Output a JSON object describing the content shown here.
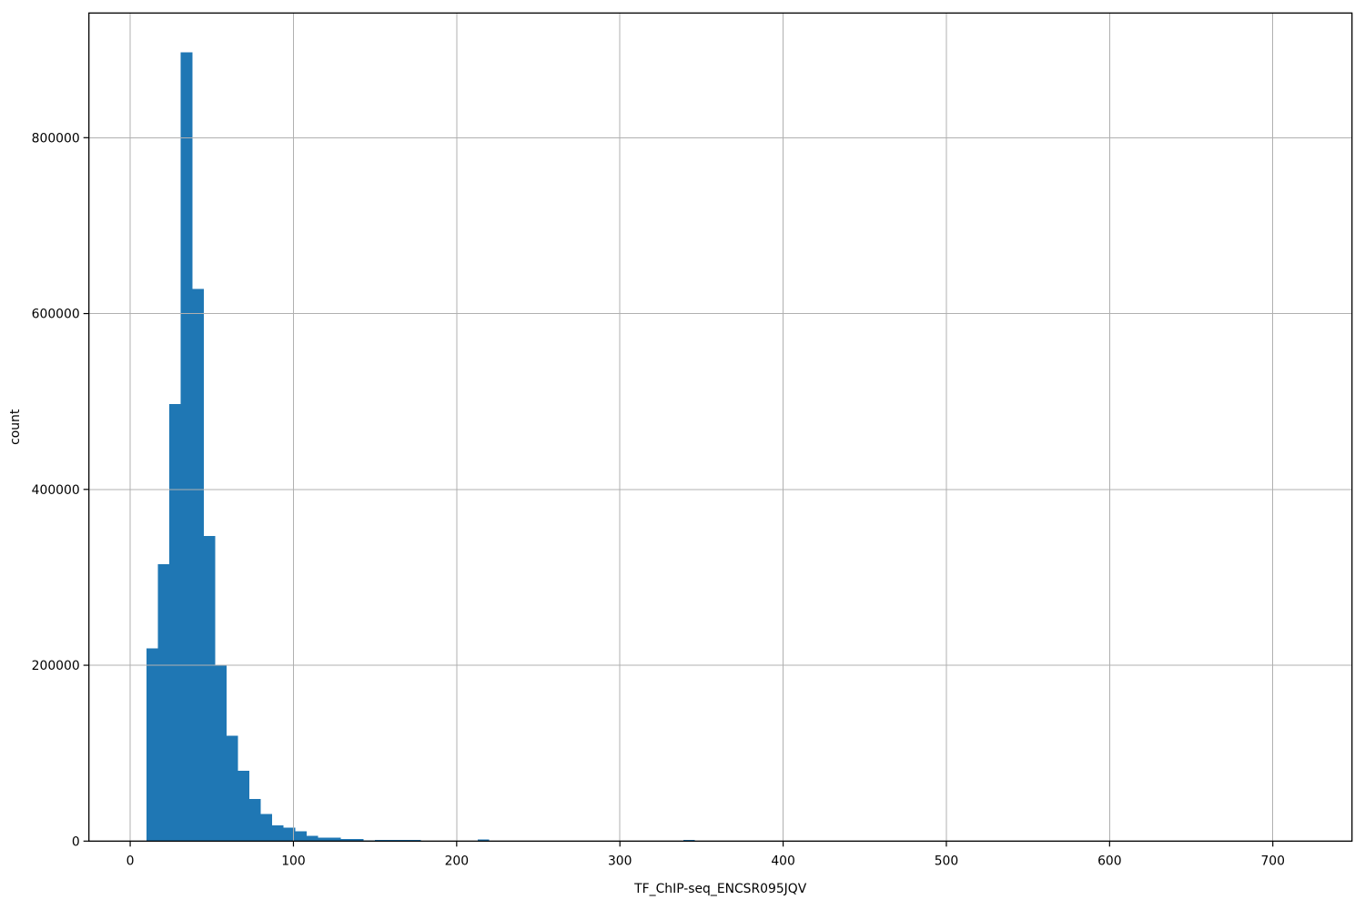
{
  "figure": {
    "background": "#ffffff"
  },
  "chart_data": {
    "type": "bar",
    "subtype": "histogram",
    "title": "",
    "xlabel": "TF_ChIP-seq_ENCSR095JQV",
    "ylabel": "count",
    "bar_color": "#1f77b4",
    "grid": true,
    "grid_color": "#b0b0b0",
    "spine_color": "#000000",
    "tick_color": "#000000",
    "text_color": "#000000",
    "legend": "none",
    "xlim": [
      -25.3,
      748.5
    ],
    "ylim": [
      0,
      941800
    ],
    "xticks": [
      0,
      100,
      200,
      300,
      400,
      500,
      600,
      700
    ],
    "yticks": [
      0,
      200000,
      400000,
      600000,
      800000
    ],
    "bin_width": 7,
    "bin_start": 10,
    "bins": [
      {
        "x0": 10,
        "x1": 17,
        "count": 219000
      },
      {
        "x0": 17,
        "x1": 24,
        "count": 315000
      },
      {
        "x0": 24,
        "x1": 31,
        "count": 497000
      },
      {
        "x0": 31,
        "x1": 38,
        "count": 897000
      },
      {
        "x0": 38,
        "x1": 45,
        "count": 628000
      },
      {
        "x0": 45,
        "x1": 52,
        "count": 347000
      },
      {
        "x0": 52,
        "x1": 59,
        "count": 200000
      },
      {
        "x0": 59,
        "x1": 66,
        "count": 120000
      },
      {
        "x0": 66,
        "x1": 73,
        "count": 80000
      },
      {
        "x0": 73,
        "x1": 80,
        "count": 48000
      },
      {
        "x0": 80,
        "x1": 87,
        "count": 31000
      },
      {
        "x0": 87,
        "x1": 94,
        "count": 18000
      },
      {
        "x0": 94,
        "x1": 101,
        "count": 15500
      },
      {
        "x0": 101,
        "x1": 108,
        "count": 11000
      },
      {
        "x0": 108,
        "x1": 115,
        "count": 5800
      },
      {
        "x0": 115,
        "x1": 122,
        "count": 4100
      },
      {
        "x0": 122,
        "x1": 129,
        "count": 4000
      },
      {
        "x0": 129,
        "x1": 136,
        "count": 2500
      },
      {
        "x0": 136,
        "x1": 143,
        "count": 2300
      },
      {
        "x0": 143,
        "x1": 150,
        "count": 700
      },
      {
        "x0": 150,
        "x1": 157,
        "count": 1300
      },
      {
        "x0": 157,
        "x1": 164,
        "count": 1300
      },
      {
        "x0": 164,
        "x1": 171,
        "count": 1200
      },
      {
        "x0": 171,
        "x1": 178,
        "count": 1200
      },
      {
        "x0": 213,
        "x1": 220,
        "count": 1700
      },
      {
        "x0": 339,
        "x1": 346,
        "count": 1400
      },
      {
        "x0": 703,
        "x1": 710,
        "count": 5
      }
    ]
  }
}
